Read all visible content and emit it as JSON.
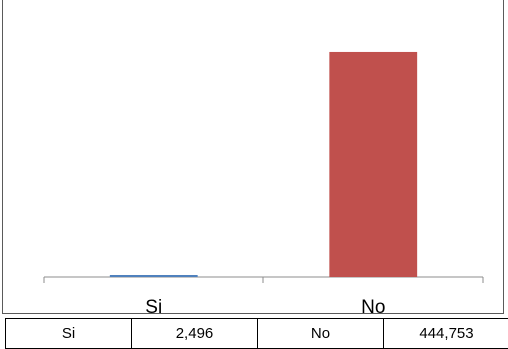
{
  "chart_data": {
    "type": "bar",
    "categories": [
      "Si",
      "No"
    ],
    "values": [
      2496,
      444753
    ],
    "ylim": [
      0,
      500000
    ],
    "grid": false,
    "colors": [
      "#4f81bd",
      "#c0504d"
    ]
  },
  "table": {
    "cells": [
      "Si",
      "2,496",
      "No",
      "444,753"
    ]
  }
}
